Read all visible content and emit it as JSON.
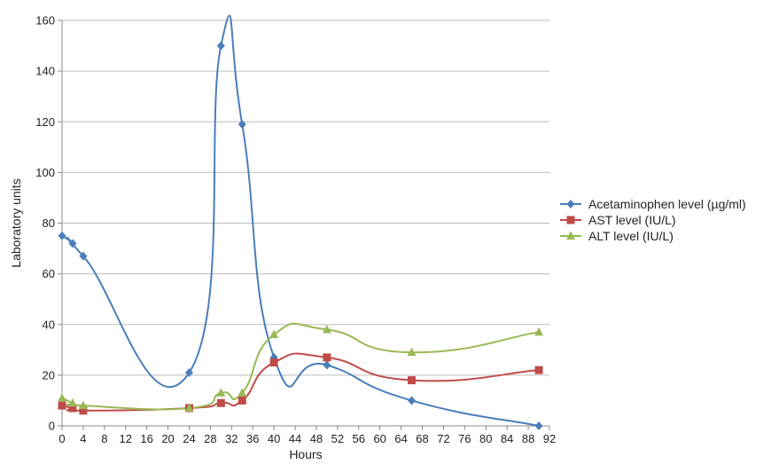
{
  "chart_data": {
    "type": "line",
    "title": "",
    "xlabel": "Hours",
    "ylabel": "Laboratory units",
    "xlim": [
      0,
      92
    ],
    "ylim": [
      0,
      160
    ],
    "xticks": [
      "0",
      "4",
      "8",
      "12",
      "16",
      "20",
      "24",
      "28",
      "32",
      "36",
      "40",
      "44",
      "48",
      "52",
      "56",
      "60",
      "64",
      "68",
      "72",
      "76",
      "80",
      "84",
      "88",
      "92"
    ],
    "yticks": [
      "0",
      "20",
      "40",
      "60",
      "80",
      "100",
      "120",
      "140",
      "160"
    ],
    "grid": "horizontal",
    "smooth": true,
    "legend_position": "right",
    "series": [
      {
        "name": "Acetaminophen level (µg/ml)",
        "color": "#4a7ebb",
        "marker": "diamond",
        "points": [
          [
            0,
            75
          ],
          [
            2,
            72
          ],
          [
            4,
            67
          ],
          [
            24,
            21
          ],
          [
            30,
            150
          ],
          [
            34,
            119
          ],
          [
            40,
            27
          ],
          [
            50,
            24
          ],
          [
            66,
            10
          ],
          [
            90,
            0
          ]
        ]
      },
      {
        "name": "AST level (IU/L)",
        "color": "#be4b48",
        "marker": "square",
        "points": [
          [
            0,
            8
          ],
          [
            2,
            7
          ],
          [
            4,
            6
          ],
          [
            24,
            7
          ],
          [
            30,
            9
          ],
          [
            34,
            10
          ],
          [
            40,
            25
          ],
          [
            50,
            27
          ],
          [
            66,
            18
          ],
          [
            90,
            22
          ]
        ]
      },
      {
        "name": "ALT level (IU/L)",
        "color": "#98b954",
        "marker": "triangle",
        "points": [
          [
            0,
            11
          ],
          [
            2,
            9
          ],
          [
            4,
            8
          ],
          [
            24,
            7
          ],
          [
            30,
            13
          ],
          [
            34,
            13
          ],
          [
            40,
            36
          ],
          [
            50,
            38
          ],
          [
            66,
            29
          ],
          [
            90,
            37
          ]
        ]
      }
    ]
  }
}
